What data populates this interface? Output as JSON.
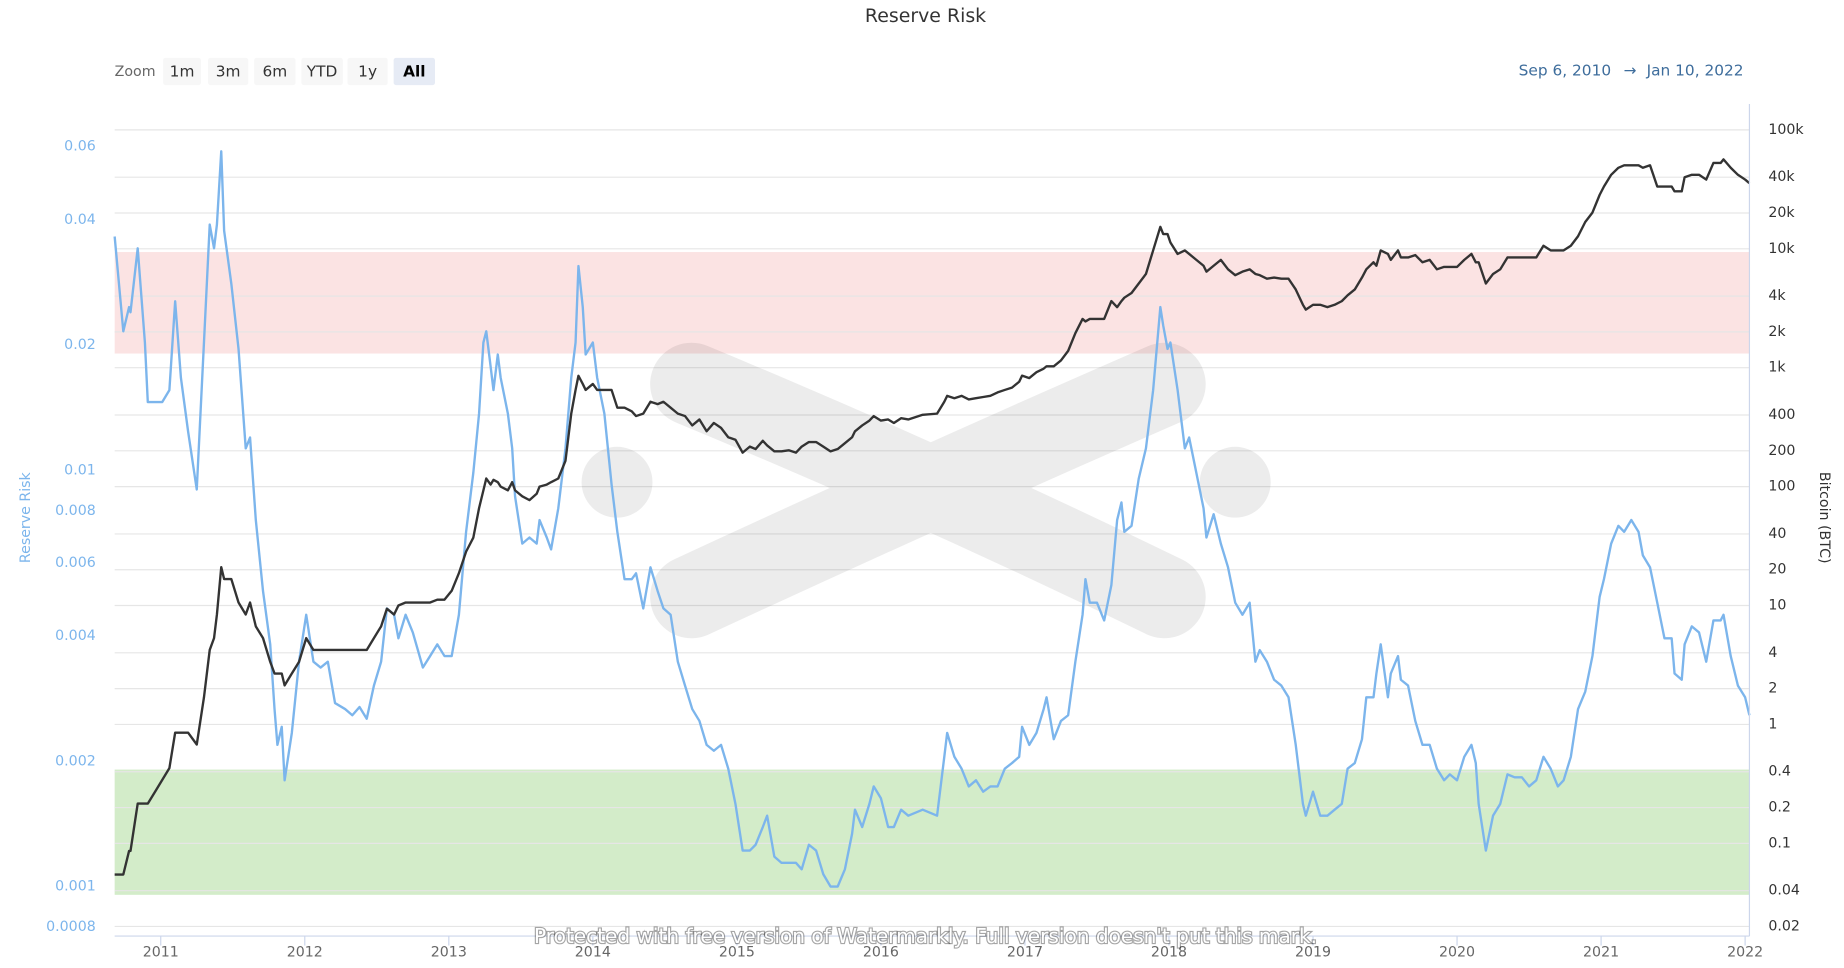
{
  "chart_data": {
    "type": "line",
    "title": "Reserve Risk",
    "zoom": {
      "label": "Zoom",
      "buttons": [
        "1m",
        "3m",
        "6m",
        "YTD",
        "1y",
        "All"
      ]
    },
    "date_range": {
      "from": "Sep 6, 2010",
      "separator": "→",
      "to": "Jan 10, 2022"
    },
    "watermark": "Protected with free version of Watermarkly. Full version doesn't put this mark.",
    "log_scale": true,
    "grid": true,
    "xlim": [
      2010.68,
      2022.03
    ],
    "xticks": [
      2011,
      2012,
      2013,
      2014,
      2015,
      2016,
      2017,
      2018,
      2019,
      2020,
      2021,
      2022
    ],
    "ylim": [
      0.00076,
      0.076
    ],
    "yticks": [
      0.06,
      0.04,
      0.02,
      0.01,
      0.008,
      0.006,
      0.004,
      0.002,
      0.001,
      0.0008
    ],
    "y2lim": [
      0.0166,
      165000
    ],
    "y2ticks": [
      {
        "value": 100000,
        "label": "100k"
      },
      {
        "value": 40000,
        "label": "40k"
      },
      {
        "value": 20000,
        "label": "20k"
      },
      {
        "value": 10000,
        "label": "10k"
      },
      {
        "value": 4000,
        "label": "4k"
      },
      {
        "value": 2000,
        "label": "2k"
      },
      {
        "value": 1000,
        "label": "1k"
      },
      400,
      200,
      100,
      40,
      20,
      10,
      4,
      2,
      1,
      0.4,
      0.2,
      0.1,
      0.04,
      0.02
    ],
    "bands": [
      {
        "from": 0.0191,
        "to": 0.0335,
        "color": "#fbe3e3"
      },
      {
        "from": 0.000955,
        "to": 0.00191,
        "color": "#d3ecc9"
      }
    ],
    "x": [
      2010.68,
      2010.74,
      2010.78,
      2010.79,
      2010.84,
      2010.89,
      2010.91,
      2010.96,
      2011.01,
      2011.06,
      2011.1,
      2011.14,
      2011.19,
      2011.25,
      2011.3,
      2011.34,
      2011.37,
      2011.39,
      2011.42,
      2011.44,
      2011.49,
      2011.54,
      2011.59,
      2011.62,
      2011.66,
      2011.71,
      2011.76,
      2011.79,
      2011.81,
      2011.84,
      2011.86,
      2011.91,
      2011.96,
      2012.01,
      2012.06,
      2012.11,
      2012.16,
      2012.21,
      2012.28,
      2012.33,
      2012.38,
      2012.43,
      2012.48,
      2012.53,
      2012.57,
      2012.62,
      2012.65,
      2012.7,
      2012.75,
      2012.82,
      2012.87,
      2012.92,
      2012.97,
      2013.02,
      2013.07,
      2013.12,
      2013.17,
      2013.21,
      2013.24,
      2013.26,
      2013.29,
      2013.31,
      2013.34,
      2013.36,
      2013.41,
      2013.44,
      2013.46,
      2013.51,
      2013.56,
      2013.61,
      2013.63,
      2013.68,
      2013.71,
      2013.76,
      2013.81,
      2013.85,
      2013.88,
      2013.9,
      2013.93,
      2013.95,
      2014.0,
      2014.03,
      2014.08,
      2014.13,
      2014.17,
      2014.22,
      2014.27,
      2014.3,
      2014.35,
      2014.4,
      2014.45,
      2014.49,
      2014.54,
      2014.59,
      2014.64,
      2014.69,
      2014.74,
      2014.79,
      2014.84,
      2014.89,
      2014.94,
      2014.99,
      2015.04,
      2015.09,
      2015.13,
      2015.18,
      2015.21,
      2015.26,
      2015.31,
      2015.36,
      2015.41,
      2015.45,
      2015.5,
      2015.55,
      2015.6,
      2015.65,
      2015.7,
      2015.75,
      2015.8,
      2015.82,
      2015.87,
      2015.92,
      2015.95,
      2016.0,
      2016.05,
      2016.09,
      2016.14,
      2016.19,
      2016.29,
      2016.39,
      2016.44,
      2016.46,
      2016.51,
      2016.56,
      2016.61,
      2016.66,
      2016.71,
      2016.76,
      2016.81,
      2016.86,
      2016.91,
      2016.96,
      2016.98,
      2017.03,
      2017.08,
      2017.13,
      2017.15,
      2017.2,
      2017.25,
      2017.3,
      2017.35,
      2017.4,
      2017.42,
      2017.45,
      2017.5,
      2017.55,
      2017.6,
      2017.64,
      2017.67,
      2017.69,
      2017.74,
      2017.79,
      2017.84,
      2017.89,
      2017.94,
      2017.96,
      2017.99,
      2018.01,
      2018.06,
      2018.11,
      2018.14,
      2018.19,
      2018.24,
      2018.26,
      2018.31,
      2018.36,
      2018.41,
      2018.46,
      2018.51,
      2018.56,
      2018.6,
      2018.63,
      2018.68,
      2018.73,
      2018.78,
      2018.83,
      2018.88,
      2018.93,
      2018.95,
      2019.0,
      2019.05,
      2019.1,
      2019.15,
      2019.2,
      2019.24,
      2019.29,
      2019.34,
      2019.37,
      2019.42,
      2019.44,
      2019.47,
      2019.52,
      2019.54,
      2019.59,
      2019.61,
      2019.66,
      2019.71,
      2019.76,
      2019.81,
      2019.86,
      2019.91,
      2019.95,
      2020.0,
      2020.05,
      2020.1,
      2020.13,
      2020.15,
      2020.2,
      2020.25,
      2020.3,
      2020.35,
      2020.4,
      2020.45,
      2020.5,
      2020.55,
      2020.6,
      2020.65,
      2020.7,
      2020.74,
      2020.79,
      2020.84,
      2020.89,
      2020.94,
      2020.99,
      2021.02,
      2021.07,
      2021.12,
      2021.16,
      2021.21,
      2021.26,
      2021.29,
      2021.34,
      2021.39,
      2021.44,
      2021.49,
      2021.51,
      2021.56,
      2021.58,
      2021.63,
      2021.68,
      2021.73,
      2021.78,
      2021.83,
      2021.85,
      2021.9,
      2021.95,
      2022.0,
      2022.03
    ],
    "series": [
      {
        "name": "Reserve Risk",
        "color": "#7cb5ec",
        "values": [
          0.0365,
          0.0216,
          0.0247,
          0.024,
          0.0342,
          0.0203,
          0.0146,
          0.0146,
          0.0146,
          0.0156,
          0.0255,
          0.0167,
          0.0124,
          0.009,
          0.0203,
          0.039,
          0.0342,
          0.039,
          0.0585,
          0.0377,
          0.0281,
          0.0196,
          0.0113,
          0.012,
          0.0076,
          0.00513,
          0.00382,
          0.00267,
          0.00219,
          0.00242,
          0.0018,
          0.00234,
          0.00347,
          0.0045,
          0.00347,
          0.00336,
          0.00347,
          0.00276,
          0.00267,
          0.00258,
          0.0027,
          0.00253,
          0.00304,
          0.00347,
          0.00466,
          0.0045,
          0.00395,
          0.0045,
          0.00408,
          0.00336,
          0.00358,
          0.00382,
          0.00358,
          0.00358,
          0.0045,
          0.00712,
          0.00987,
          0.0137,
          0.0203,
          0.0216,
          0.0178,
          0.0156,
          0.019,
          0.0167,
          0.0137,
          0.0113,
          0.00866,
          0.00667,
          0.0069,
          0.00667,
          0.0076,
          0.0069,
          0.00646,
          0.00811,
          0.0113,
          0.0167,
          0.0203,
          0.031,
          0.0247,
          0.019,
          0.0203,
          0.0167,
          0.0137,
          0.00925,
          0.00712,
          0.00548,
          0.00548,
          0.00566,
          0.00466,
          0.00585,
          0.00513,
          0.00466,
          0.0045,
          0.00347,
          0.00304,
          0.00267,
          0.0025,
          0.00219,
          0.00212,
          0.00219,
          0.00192,
          0.00158,
          0.00122,
          0.00122,
          0.00126,
          0.00139,
          0.00148,
          0.00118,
          0.00114,
          0.00114,
          0.00114,
          0.0011,
          0.00126,
          0.00122,
          0.00107,
          0.001,
          0.001,
          0.0011,
          0.00134,
          0.00153,
          0.00139,
          0.00158,
          0.00174,
          0.00163,
          0.00139,
          0.00139,
          0.00153,
          0.00148,
          0.00153,
          0.00148,
          0.00205,
          0.00234,
          0.00205,
          0.00192,
          0.00174,
          0.0018,
          0.00169,
          0.00174,
          0.00174,
          0.00192,
          0.00198,
          0.00205,
          0.00242,
          0.00219,
          0.00234,
          0.00267,
          0.00285,
          0.00226,
          0.0025,
          0.00258,
          0.00347,
          0.0045,
          0.00548,
          0.00481,
          0.00481,
          0.00436,
          0.0053,
          0.0076,
          0.00838,
          0.00712,
          0.00736,
          0.00956,
          0.0113,
          0.0156,
          0.0247,
          0.0223,
          0.0196,
          0.0203,
          0.0156,
          0.0113,
          0.012,
          0.00987,
          0.00811,
          0.0069,
          0.00785,
          0.00667,
          0.00585,
          0.00481,
          0.0045,
          0.00481,
          0.00347,
          0.0037,
          0.00347,
          0.00314,
          0.00304,
          0.00285,
          0.00219,
          0.00158,
          0.00148,
          0.00169,
          0.00148,
          0.00148,
          0.00153,
          0.00158,
          0.00192,
          0.00198,
          0.00226,
          0.00285,
          0.00285,
          0.00325,
          0.00382,
          0.00285,
          0.00325,
          0.00358,
          0.00314,
          0.00304,
          0.0025,
          0.00219,
          0.00219,
          0.00192,
          0.0018,
          0.00186,
          0.0018,
          0.00205,
          0.00219,
          0.00198,
          0.00158,
          0.00122,
          0.00148,
          0.00158,
          0.00186,
          0.00183,
          0.00183,
          0.00174,
          0.0018,
          0.00205,
          0.00192,
          0.00174,
          0.0018,
          0.00205,
          0.00267,
          0.00294,
          0.00358,
          0.00497,
          0.00548,
          0.00667,
          0.00736,
          0.00712,
          0.0076,
          0.00712,
          0.00625,
          0.00585,
          0.00481,
          0.00395,
          0.00395,
          0.00325,
          0.00314,
          0.00382,
          0.00422,
          0.00408,
          0.00347,
          0.00436,
          0.00436,
          0.0045,
          0.00358,
          0.00304,
          0.00285,
          0.00258
        ]
      },
      {
        "name": "Bitcoin (BTC)",
        "color": "#333333",
        "axis": "y2",
        "values": [
          0.0547,
          0.0547,
          0.0863,
          0.0863,
          0.216,
          0.216,
          0.216,
          0.271,
          0.341,
          0.429,
          0.852,
          0.852,
          0.852,
          0.678,
          1.69,
          4.23,
          5.32,
          8.4,
          21,
          16.7,
          16.7,
          10.6,
          8.4,
          10.6,
          6.68,
          5.32,
          3.36,
          2.68,
          2.68,
          2.68,
          2.13,
          2.68,
          3.36,
          5.32,
          4.23,
          4.23,
          4.23,
          4.23,
          4.23,
          4.23,
          4.23,
          4.23,
          5.32,
          6.68,
          9.4,
          8.4,
          10,
          10.6,
          10.6,
          10.6,
          10.6,
          11.2,
          11.2,
          13.3,
          18.7,
          28.4,
          37.2,
          65.9,
          93,
          117,
          104,
          114,
          109,
          100,
          93,
          109,
          93,
          82.9,
          77,
          87,
          100,
          104,
          109,
          117,
          165,
          411,
          650,
          855,
          730,
          650,
          730,
          650,
          650,
          650,
          461,
          461,
          430,
          392,
          411,
          517,
          494,
          517,
          461,
          411,
          392,
          327,
          367,
          292,
          343,
          312,
          260,
          248,
          193,
          217,
          207,
          243,
          222,
          198,
          198,
          202,
          193,
          217,
          237,
          237,
          217,
          198,
          207,
          232,
          260,
          292,
          327,
          359,
          392,
          359,
          367,
          343,
          376,
          367,
          402,
          411,
          517,
          580,
          554,
          580,
          541,
          554,
          567,
          580,
          620,
          650,
          680,
          762,
          857,
          818,
          917,
          982,
          1028,
          1028,
          1150,
          1385,
          1950,
          2570,
          2450,
          2570,
          2570,
          2570,
          3630,
          3230,
          3630,
          3880,
          4250,
          5105,
          6140,
          9690,
          15300,
          13300,
          13300,
          11300,
          9050,
          9690,
          9050,
          8070,
          7200,
          6420,
          7200,
          8070,
          6720,
          6000,
          6420,
          6720,
          6140,
          6000,
          5600,
          5730,
          5600,
          5600,
          4550,
          3380,
          3080,
          3380,
          3380,
          3230,
          3380,
          3630,
          4060,
          4550,
          5730,
          6720,
          7700,
          7200,
          9690,
          9050,
          8070,
          9690,
          8450,
          8450,
          8850,
          7700,
          8070,
          6720,
          7040,
          7040,
          7040,
          8070,
          9050,
          7700,
          7700,
          5105,
          6140,
          6720,
          8450,
          8450,
          8450,
          8450,
          8450,
          10600,
          9690,
          9690,
          9690,
          10600,
          12750,
          16800,
          20150,
          28400,
          33400,
          41900,
          48000,
          50350,
          50350,
          50350,
          48000,
          50350,
          33400,
          33400,
          33400,
          30400,
          30400,
          40000,
          41900,
          41900,
          38200,
          52700,
          52700,
          56500,
          48000,
          41900,
          38200,
          35600
        ]
      }
    ]
  }
}
